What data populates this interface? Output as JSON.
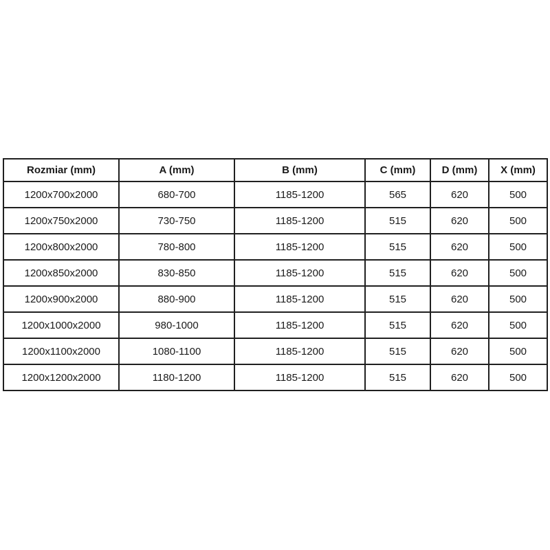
{
  "colors": {
    "background": "#ffffff",
    "border": "#1f1f1f",
    "text": "#1a1a1a"
  },
  "table": {
    "columns": [
      "Rozmiar (mm)",
      "A (mm)",
      "B (mm)",
      "C (mm)",
      "D (mm)",
      "X (mm)"
    ],
    "rows": [
      [
        "1200x700x2000",
        "680-700",
        "1185-1200",
        "565",
        "620",
        "500"
      ],
      [
        "1200x750x2000",
        "730-750",
        "1185-1200",
        "515",
        "620",
        "500"
      ],
      [
        "1200x800x2000",
        "780-800",
        "1185-1200",
        "515",
        "620",
        "500"
      ],
      [
        "1200x850x2000",
        "830-850",
        "1185-1200",
        "515",
        "620",
        "500"
      ],
      [
        "1200x900x2000",
        "880-900",
        "1185-1200",
        "515",
        "620",
        "500"
      ],
      [
        "1200x1000x2000",
        "980-1000",
        "1185-1200",
        "515",
        "620",
        "500"
      ],
      [
        "1200x1100x2000",
        "1080-1100",
        "1185-1200",
        "515",
        "620",
        "500"
      ],
      [
        "1200x1200x2000",
        "1180-1200",
        "1185-1200",
        "515",
        "620",
        "500"
      ]
    ]
  }
}
